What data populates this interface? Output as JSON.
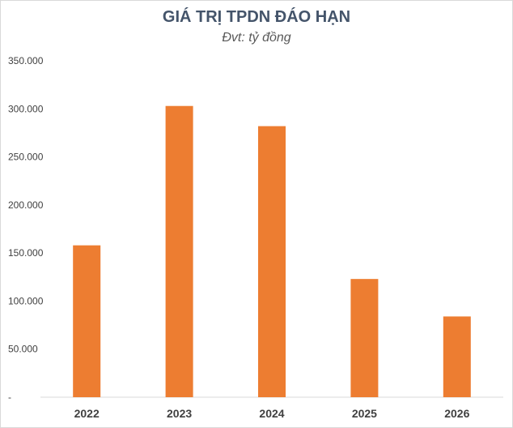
{
  "chart_data": {
    "type": "bar",
    "title": "GIÁ TRỊ TPDN ĐÁO HẠN",
    "subtitle": "Đvt: tỷ đồng",
    "categories": [
      "2022",
      "2023",
      "2024",
      "2025",
      "2026"
    ],
    "values": [
      158000,
      303000,
      282000,
      123000,
      84000
    ],
    "ylim": [
      0,
      350000
    ],
    "yticks": [
      0,
      50000,
      100000,
      150000,
      200000,
      250000,
      300000,
      350000
    ],
    "ytick_labels": [
      "-",
      "50.000",
      "100.000",
      "150.000",
      "200.000",
      "250.000",
      "300.000",
      "350.000"
    ],
    "xlabel": "",
    "ylabel": "",
    "grid": false,
    "bar_color": "#ed7d31"
  }
}
